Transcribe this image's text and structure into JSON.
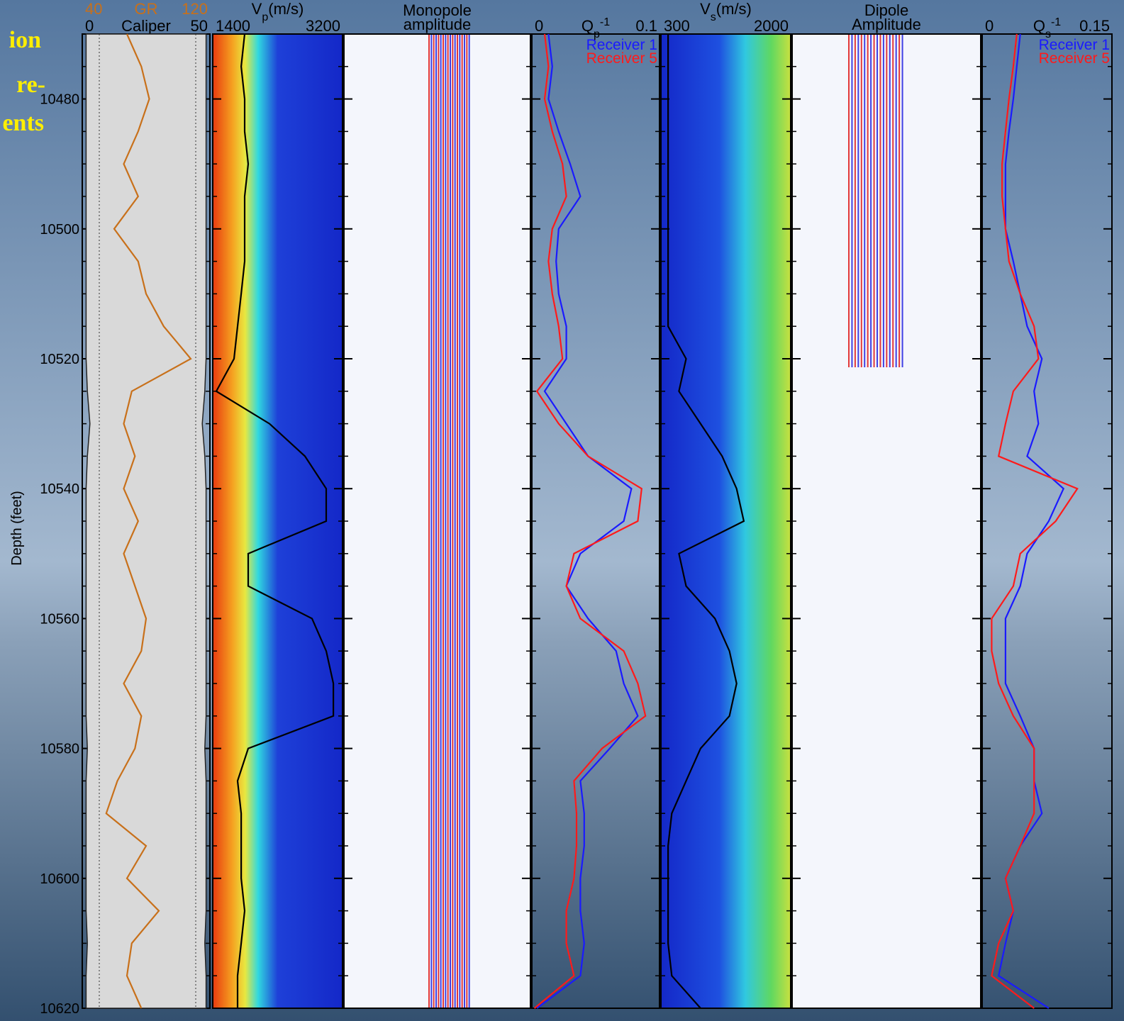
{
  "title_fragments": [
    "ion",
    "re-",
    "ents"
  ],
  "depth_axis": {
    "label": "Depth (feet)",
    "lim": [
      10470,
      10620
    ],
    "ticks": [
      10480,
      10500,
      10520,
      10540,
      10560,
      10580,
      10600,
      10620
    ],
    "values": [
      10470,
      10475,
      10480,
      10485,
      10490,
      10495,
      10500,
      10505,
      10510,
      10515,
      10520,
      10525,
      10530,
      10535,
      10540,
      10545,
      10550,
      10555,
      10560,
      10565,
      10570,
      10575,
      10580,
      10585,
      10590,
      10595,
      10600,
      10605,
      10610,
      10615,
      10620
    ]
  },
  "chart_data": [
    {
      "type": "line",
      "axes": [
        {
          "title": [
            {
              "text": "Caliper"
            }
          ],
          "xlim": [
            0,
            50
          ],
          "xticks": [
            0,
            50
          ],
          "color": "#000000",
          "series": [
            {
              "color": "#222222",
              "fill": "#d9d9d9",
              "values": [
                47,
                47,
                47,
                47,
                47,
                47,
                47,
                47,
                47,
                47,
                47,
                46,
                44,
                46,
                47,
                47,
                47,
                47,
                47,
                47,
                47,
                47,
                46,
                47,
                47,
                47,
                47,
                47,
                46,
                47,
                47
              ]
            }
          ]
        },
        {
          "title": [
            {
              "text": "GR"
            }
          ],
          "xlim": [
            40,
            120
          ],
          "xticks": [
            40,
            120
          ],
          "color": "#c8701a",
          "series": [
            {
              "color": "#c8701a",
              "values": [
                68,
                77,
                82,
                75,
                66,
                75,
                60,
                75,
                80,
                91,
                108,
                71,
                66,
                73,
                66,
                75,
                66,
                73,
                80,
                77,
                66,
                77,
                73,
                62,
                55,
                80,
                68,
                88,
                71,
                68,
                77
              ]
            }
          ]
        }
      ]
    },
    {
      "type": "line",
      "axes": [
        {
          "title": [
            {
              "text": "V"
            },
            {
              "text": "p",
              "shift": "sub"
            },
            {
              "text": "(m/s)"
            }
          ],
          "xlim": [
            1400,
            3200
          ],
          "xticks": [
            1400,
            3200
          ],
          "color": "#000000",
          "series": [
            {
              "color": "#000000",
              "values": [
                1843,
                1794,
                1843,
                1843,
                1892,
                1843,
                1843,
                1843,
                1794,
                1744,
                1695,
                1449,
                2187,
                2679,
                2974,
                2974,
                1892,
                1892,
                2777,
                2974,
                3073,
                3073,
                1892,
                1744,
                1794,
                1794,
                1794,
                1843,
                1794,
                1744,
                1744
              ]
            }
          ]
        }
      ]
    },
    {
      "type": "image",
      "title": [
        "Monopole",
        "amplitude"
      ]
    },
    {
      "type": "line",
      "axes": [
        {
          "title": [
            {
              "text": "Q"
            },
            {
              "text": "p",
              "shift": "sub"
            },
            {
              "text": "-1",
              "shift": "super"
            }
          ],
          "xlim": [
            0,
            0.1
          ],
          "xticks": [
            0,
            0.1
          ],
          "color": "#000000",
          "series": [
            {
              "name": "Receiver 1",
              "color": "#1a1aff",
              "values": [
                0.013,
                0.016,
                0.013,
                0.021,
                0.03,
                0.038,
                0.021,
                0.019,
                0.021,
                0.027,
                0.027,
                0.01,
                0.027,
                0.044,
                0.078,
                0.072,
                0.038,
                0.027,
                0.044,
                0.066,
                0.072,
                0.083,
                0.061,
                0.038,
                0.041,
                0.041,
                0.038,
                0.038,
                0.041,
                0.038,
                0.004
              ]
            },
            {
              "name": "Receiver 5",
              "color": "#ff1a1a",
              "values": [
                0.01,
                0.013,
                0.01,
                0.016,
                0.024,
                0.027,
                0.016,
                0.013,
                0.016,
                0.021,
                0.024,
                0.004,
                0.021,
                0.044,
                0.086,
                0.083,
                0.033,
                0.027,
                0.038,
                0.072,
                0.083,
                0.089,
                0.055,
                0.033,
                0.035,
                0.035,
                0.033,
                0.027,
                0.027,
                0.033,
                0.002
              ]
            }
          ]
        }
      ]
    },
    {
      "type": "line",
      "axes": [
        {
          "title": [
            {
              "text": "V"
            },
            {
              "text": "s",
              "shift": "sub"
            },
            {
              "text": "(m/s)"
            }
          ],
          "xlim": [
            300,
            2000
          ],
          "xticks": [
            300,
            2000
          ],
          "color": "#000000",
          "series": [
            {
              "color": "#000000",
              "values": [
                394,
                394,
                394,
                394,
                394,
                394,
                394,
                394,
                394,
                394,
                630,
                536,
                819,
                1102,
                1291,
                1386,
                536,
                630,
                1008,
                1197,
                1291,
                1197,
                819,
                630,
                442,
                394,
                394,
                394,
                394,
                442,
                819
              ]
            }
          ]
        }
      ]
    },
    {
      "type": "image",
      "title": [
        "Dipole",
        "Amplitude"
      ]
    },
    {
      "type": "line",
      "axes": [
        {
          "title": [
            {
              "text": "Q"
            },
            {
              "text": "s",
              "shift": "sub"
            },
            {
              "text": "-1",
              "shift": "super"
            }
          ],
          "xlim": [
            0,
            0.15
          ],
          "xticks": [
            0,
            0.15
          ],
          "color": "#000000",
          "series": [
            {
              "name": "Receiver 1",
              "color": "#1a1aff",
              "values": [
                0.044,
                0.04,
                0.036,
                0.031,
                0.027,
                0.027,
                0.027,
                0.036,
                0.044,
                0.052,
                0.069,
                0.06,
                0.065,
                0.052,
                0.094,
                0.077,
                0.052,
                0.044,
                0.027,
                0.027,
                0.027,
                0.044,
                0.06,
                0.06,
                0.069,
                0.044,
                0.027,
                0.036,
                0.027,
                0.019,
                0.077
              ]
            },
            {
              "name": "Receiver 5",
              "color": "#ff1a1a",
              "values": [
                0.04,
                0.036,
                0.031,
                0.027,
                0.023,
                0.023,
                0.027,
                0.031,
                0.044,
                0.06,
                0.065,
                0.036,
                0.027,
                0.019,
                0.11,
                0.085,
                0.044,
                0.036,
                0.011,
                0.011,
                0.019,
                0.036,
                0.06,
                0.06,
                0.06,
                0.044,
                0.027,
                0.036,
                0.019,
                0.011,
                0.06
              ]
            }
          ]
        }
      ]
    }
  ]
}
